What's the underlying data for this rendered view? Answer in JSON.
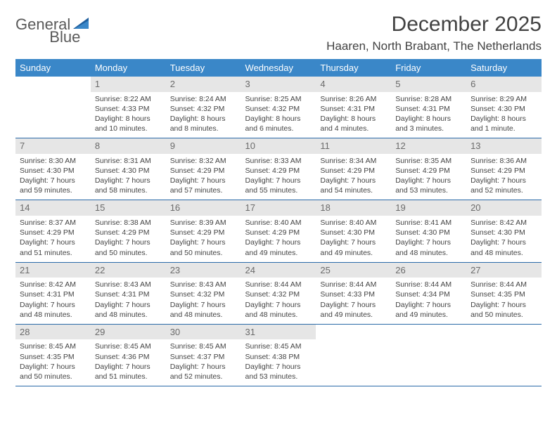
{
  "logo": {
    "text1": "General",
    "text2": "Blue"
  },
  "header": {
    "month_title": "December 2025",
    "location": "Haaren, North Brabant, The Netherlands"
  },
  "colors": {
    "header_bg": "#3a87c8",
    "header_text": "#ffffff",
    "row_border": "#2a6aa8",
    "daynum_bg": "#e6e6e6",
    "daynum_text": "#6b6b6b",
    "body_text": "#444444",
    "title_text": "#424242",
    "logo_gray": "#5a5a5a",
    "logo_blue": "#2f6fae"
  },
  "calendar": {
    "weekday_labels": [
      "Sunday",
      "Monday",
      "Tuesday",
      "Wednesday",
      "Thursday",
      "Friday",
      "Saturday"
    ],
    "weeks": [
      [
        {
          "day": "",
          "sunrise": "",
          "sunset": "",
          "daylight": ""
        },
        {
          "day": "1",
          "sunrise": "Sunrise: 8:22 AM",
          "sunset": "Sunset: 4:33 PM",
          "daylight": "Daylight: 8 hours and 10 minutes."
        },
        {
          "day": "2",
          "sunrise": "Sunrise: 8:24 AM",
          "sunset": "Sunset: 4:32 PM",
          "daylight": "Daylight: 8 hours and 8 minutes."
        },
        {
          "day": "3",
          "sunrise": "Sunrise: 8:25 AM",
          "sunset": "Sunset: 4:32 PM",
          "daylight": "Daylight: 8 hours and 6 minutes."
        },
        {
          "day": "4",
          "sunrise": "Sunrise: 8:26 AM",
          "sunset": "Sunset: 4:31 PM",
          "daylight": "Daylight: 8 hours and 4 minutes."
        },
        {
          "day": "5",
          "sunrise": "Sunrise: 8:28 AM",
          "sunset": "Sunset: 4:31 PM",
          "daylight": "Daylight: 8 hours and 3 minutes."
        },
        {
          "day": "6",
          "sunrise": "Sunrise: 8:29 AM",
          "sunset": "Sunset: 4:30 PM",
          "daylight": "Daylight: 8 hours and 1 minute."
        }
      ],
      [
        {
          "day": "7",
          "sunrise": "Sunrise: 8:30 AM",
          "sunset": "Sunset: 4:30 PM",
          "daylight": "Daylight: 7 hours and 59 minutes."
        },
        {
          "day": "8",
          "sunrise": "Sunrise: 8:31 AM",
          "sunset": "Sunset: 4:30 PM",
          "daylight": "Daylight: 7 hours and 58 minutes."
        },
        {
          "day": "9",
          "sunrise": "Sunrise: 8:32 AM",
          "sunset": "Sunset: 4:29 PM",
          "daylight": "Daylight: 7 hours and 57 minutes."
        },
        {
          "day": "10",
          "sunrise": "Sunrise: 8:33 AM",
          "sunset": "Sunset: 4:29 PM",
          "daylight": "Daylight: 7 hours and 55 minutes."
        },
        {
          "day": "11",
          "sunrise": "Sunrise: 8:34 AM",
          "sunset": "Sunset: 4:29 PM",
          "daylight": "Daylight: 7 hours and 54 minutes."
        },
        {
          "day": "12",
          "sunrise": "Sunrise: 8:35 AM",
          "sunset": "Sunset: 4:29 PM",
          "daylight": "Daylight: 7 hours and 53 minutes."
        },
        {
          "day": "13",
          "sunrise": "Sunrise: 8:36 AM",
          "sunset": "Sunset: 4:29 PM",
          "daylight": "Daylight: 7 hours and 52 minutes."
        }
      ],
      [
        {
          "day": "14",
          "sunrise": "Sunrise: 8:37 AM",
          "sunset": "Sunset: 4:29 PM",
          "daylight": "Daylight: 7 hours and 51 minutes."
        },
        {
          "day": "15",
          "sunrise": "Sunrise: 8:38 AM",
          "sunset": "Sunset: 4:29 PM",
          "daylight": "Daylight: 7 hours and 50 minutes."
        },
        {
          "day": "16",
          "sunrise": "Sunrise: 8:39 AM",
          "sunset": "Sunset: 4:29 PM",
          "daylight": "Daylight: 7 hours and 50 minutes."
        },
        {
          "day": "17",
          "sunrise": "Sunrise: 8:40 AM",
          "sunset": "Sunset: 4:29 PM",
          "daylight": "Daylight: 7 hours and 49 minutes."
        },
        {
          "day": "18",
          "sunrise": "Sunrise: 8:40 AM",
          "sunset": "Sunset: 4:30 PM",
          "daylight": "Daylight: 7 hours and 49 minutes."
        },
        {
          "day": "19",
          "sunrise": "Sunrise: 8:41 AM",
          "sunset": "Sunset: 4:30 PM",
          "daylight": "Daylight: 7 hours and 48 minutes."
        },
        {
          "day": "20",
          "sunrise": "Sunrise: 8:42 AM",
          "sunset": "Sunset: 4:30 PM",
          "daylight": "Daylight: 7 hours and 48 minutes."
        }
      ],
      [
        {
          "day": "21",
          "sunrise": "Sunrise: 8:42 AM",
          "sunset": "Sunset: 4:31 PM",
          "daylight": "Daylight: 7 hours and 48 minutes."
        },
        {
          "day": "22",
          "sunrise": "Sunrise: 8:43 AM",
          "sunset": "Sunset: 4:31 PM",
          "daylight": "Daylight: 7 hours and 48 minutes."
        },
        {
          "day": "23",
          "sunrise": "Sunrise: 8:43 AM",
          "sunset": "Sunset: 4:32 PM",
          "daylight": "Daylight: 7 hours and 48 minutes."
        },
        {
          "day": "24",
          "sunrise": "Sunrise: 8:44 AM",
          "sunset": "Sunset: 4:32 PM",
          "daylight": "Daylight: 7 hours and 48 minutes."
        },
        {
          "day": "25",
          "sunrise": "Sunrise: 8:44 AM",
          "sunset": "Sunset: 4:33 PM",
          "daylight": "Daylight: 7 hours and 49 minutes."
        },
        {
          "day": "26",
          "sunrise": "Sunrise: 8:44 AM",
          "sunset": "Sunset: 4:34 PM",
          "daylight": "Daylight: 7 hours and 49 minutes."
        },
        {
          "day": "27",
          "sunrise": "Sunrise: 8:44 AM",
          "sunset": "Sunset: 4:35 PM",
          "daylight": "Daylight: 7 hours and 50 minutes."
        }
      ],
      [
        {
          "day": "28",
          "sunrise": "Sunrise: 8:45 AM",
          "sunset": "Sunset: 4:35 PM",
          "daylight": "Daylight: 7 hours and 50 minutes."
        },
        {
          "day": "29",
          "sunrise": "Sunrise: 8:45 AM",
          "sunset": "Sunset: 4:36 PM",
          "daylight": "Daylight: 7 hours and 51 minutes."
        },
        {
          "day": "30",
          "sunrise": "Sunrise: 8:45 AM",
          "sunset": "Sunset: 4:37 PM",
          "daylight": "Daylight: 7 hours and 52 minutes."
        },
        {
          "day": "31",
          "sunrise": "Sunrise: 8:45 AM",
          "sunset": "Sunset: 4:38 PM",
          "daylight": "Daylight: 7 hours and 53 minutes."
        },
        {
          "day": "",
          "sunrise": "",
          "sunset": "",
          "daylight": ""
        },
        {
          "day": "",
          "sunrise": "",
          "sunset": "",
          "daylight": ""
        },
        {
          "day": "",
          "sunrise": "",
          "sunset": "",
          "daylight": ""
        }
      ]
    ]
  }
}
